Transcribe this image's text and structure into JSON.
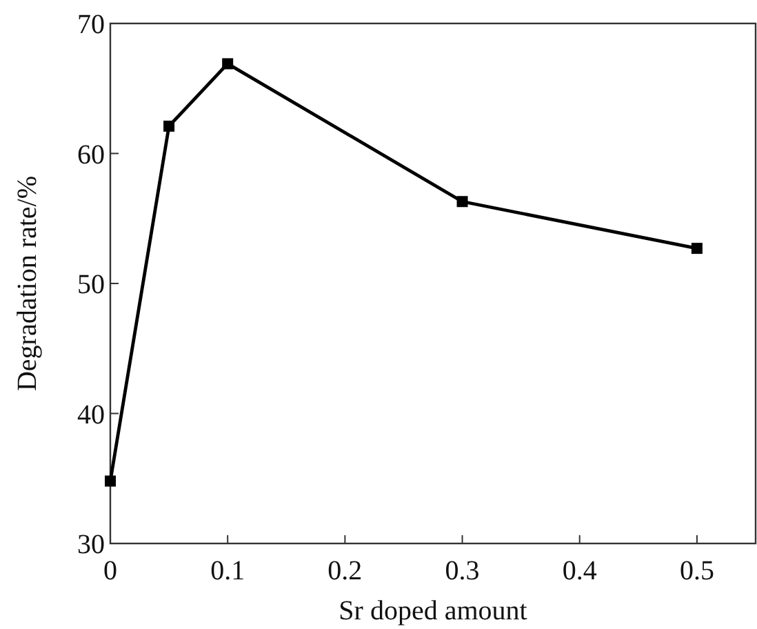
{
  "chart_data": {
    "type": "line",
    "xlabel": "Sr doped amount",
    "ylabel": "Degradation rate/%",
    "x": [
      0,
      0.05,
      0.1,
      0.3,
      0.5
    ],
    "series": [
      {
        "color": "#000000",
        "values": [
          34.8,
          62.1,
          66.9,
          56.3,
          52.7
        ]
      }
    ],
    "xlim": [
      0,
      0.55
    ],
    "xticks": [
      0,
      0.1,
      0.2,
      0.3,
      0.4,
      0.5
    ],
    "ylim": [
      30,
      70
    ],
    "yticks": [
      30,
      40,
      50,
      60,
      70
    ],
    "marker": "square",
    "line_style": "solid"
  }
}
